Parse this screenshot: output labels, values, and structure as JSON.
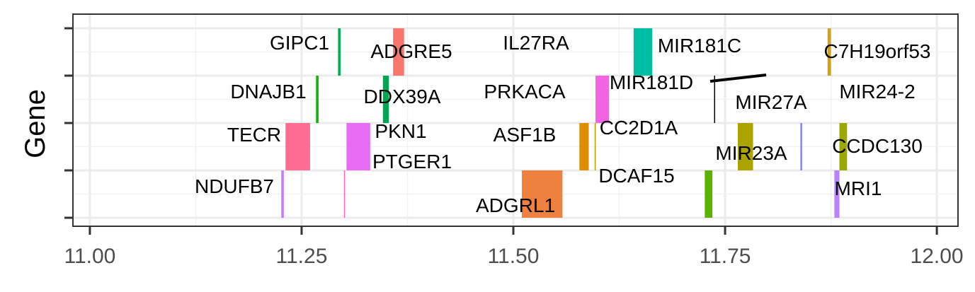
{
  "chart_data": {
    "type": "gene-track",
    "ylabel": "Gene",
    "xlim": [
      10.98,
      12.025
    ],
    "x_ticks": [
      "11.00",
      "11.25",
      "11.50",
      "11.75",
      "12.00"
    ],
    "x_tick_values": [
      11.0,
      11.25,
      11.5,
      11.75,
      12.0
    ],
    "grid": "on",
    "rows": 4,
    "genes": [
      {
        "name": "GIPC1",
        "start": 11.293,
        "end": 11.296,
        "row": 4,
        "color": "#00b050"
      },
      {
        "name": "ADGRE5",
        "start": 11.358,
        "end": 11.371,
        "row": 4,
        "color": "#f8766d"
      },
      {
        "name": "IL27RA",
        "start": 11.642,
        "end": 11.664,
        "row": 4,
        "color": "#00bfa0"
      },
      {
        "name": "MIR181C",
        "start": 11.655,
        "end": 11.656,
        "row": 4,
        "color": "#00bfc4"
      },
      {
        "name": "C7H19orf53",
        "start": 11.871,
        "end": 11.875,
        "row": 4,
        "color": "#d4a017"
      },
      {
        "name": "DNAJB1",
        "start": 11.267,
        "end": 11.27,
        "row": 3,
        "color": "#0cb702"
      },
      {
        "name": "DDX39A",
        "start": 11.346,
        "end": 11.353,
        "row": 3,
        "color": "#00a651"
      },
      {
        "name": "PRKACA",
        "start": 11.597,
        "end": 11.613,
        "row": 3,
        "color": "#f564e3"
      },
      {
        "name": "MIR181D",
        "start": 11.737,
        "end": 11.738,
        "row": 3,
        "color": "#000000"
      },
      {
        "name": "MIR27A",
        "start": 11.839,
        "end": 11.8395,
        "row": 2,
        "color": "#6464ff"
      },
      {
        "name": "MIR24-2",
        "start": 11.8396,
        "end": 11.84,
        "row": 2,
        "color": "#7f7fff"
      },
      {
        "name": "TECR",
        "start": 11.231,
        "end": 11.26,
        "row": 2,
        "color": "#ff6c91"
      },
      {
        "name": "PKN1",
        "start": 11.303,
        "end": 11.331,
        "row": 2,
        "color": "#e76bf3"
      },
      {
        "name": "ASF1B",
        "start": 11.578,
        "end": 11.589,
        "row": 2,
        "color": "#de8c00"
      },
      {
        "name": "CC2D1A",
        "start": 11.596,
        "end": 11.597,
        "row": 2,
        "color": "#c49a00"
      },
      {
        "name": "MIR23A",
        "start": 11.765,
        "end": 11.783,
        "row": 2,
        "color": "#aba300"
      },
      {
        "name": "CCDC130",
        "start": 11.885,
        "end": 11.894,
        "row": 2,
        "color": "#9aa800"
      },
      {
        "name": "NDUFB7",
        "start": 11.226,
        "end": 11.229,
        "row": 1,
        "color": "#c77cff"
      },
      {
        "name": "PTGER1",
        "start": 11.3,
        "end": 11.301,
        "row": 1,
        "color": "#ff61c3"
      },
      {
        "name": "ADGRL1",
        "start": 11.51,
        "end": 11.558,
        "row": 1,
        "color": "#ee8040"
      },
      {
        "name": "DCAF15",
        "start": 11.726,
        "end": 11.735,
        "row": 1,
        "color": "#5bb300"
      },
      {
        "name": "MRI1",
        "start": 11.879,
        "end": 11.885,
        "row": 1,
        "color": "#b983ff"
      }
    ]
  }
}
